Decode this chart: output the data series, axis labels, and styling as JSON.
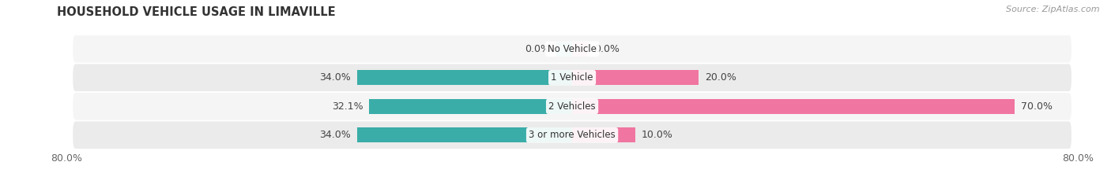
{
  "title": "HOUSEHOLD VEHICLE USAGE IN LIMAVILLE",
  "source": "Source: ZipAtlas.com",
  "categories": [
    "No Vehicle",
    "1 Vehicle",
    "2 Vehicles",
    "3 or more Vehicles"
  ],
  "owner_values": [
    0.0,
    34.0,
    32.1,
    34.0
  ],
  "renter_values": [
    0.0,
    20.0,
    70.0,
    10.0
  ],
  "owner_color": "#3aada8",
  "renter_color": "#f075a0",
  "owner_color_light": "#8ed0cd",
  "renter_color_light": "#f7b3cb",
  "row_bg_color_light": "#f5f5f5",
  "row_bg_color_dark": "#ebebeb",
  "xlim": [
    -80,
    80
  ],
  "title_fontsize": 10.5,
  "source_fontsize": 8,
  "label_fontsize": 9,
  "category_fontsize": 8.5,
  "bar_height": 0.52
}
